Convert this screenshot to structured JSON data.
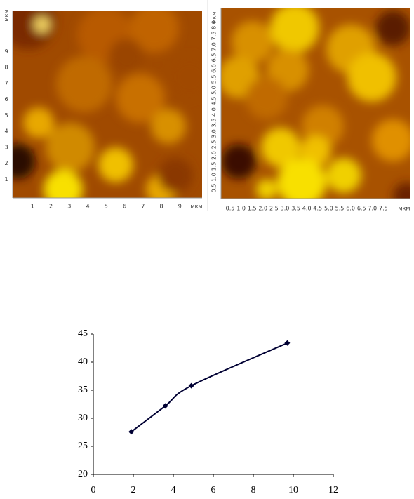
{
  "afm_left": {
    "unit": "мкм",
    "x_ticks": [
      1,
      2,
      3,
      4,
      5,
      6,
      7,
      8,
      9
    ],
    "y_ticks": [
      1,
      2,
      3,
      4,
      5,
      6,
      7,
      8,
      9
    ]
  },
  "afm_right": {
    "unit": "мкм",
    "x_ticks": [
      "0.5",
      "1.0",
      "1.5",
      "2.0",
      "2.5",
      "3.0",
      "3.5",
      "4.0",
      "4.5",
      "5.0",
      "5.5",
      "6.0",
      "6.5",
      "7.0",
      "7.5"
    ],
    "y_ticks": [
      "0.5",
      "1.0",
      "1.5",
      "2.0",
      "2.5",
      "3.0",
      "3.5",
      "4.0",
      "4.5",
      "5.0",
      "5.5",
      "6.0",
      "6.5",
      "7.0",
      "7.5",
      "8.0"
    ]
  },
  "chart_data": {
    "type": "line",
    "x": [
      1.9,
      3.6,
      4.9,
      9.7
    ],
    "values": [
      27.6,
      32.2,
      35.8,
      43.4
    ],
    "color": "#000033",
    "marker": "diamond",
    "xlim": [
      0,
      12
    ],
    "xticks": [
      0,
      2,
      4,
      6,
      8,
      10,
      12
    ],
    "ylim": [
      20,
      45
    ],
    "yticks": [
      20,
      25,
      30,
      35,
      40,
      45
    ]
  }
}
